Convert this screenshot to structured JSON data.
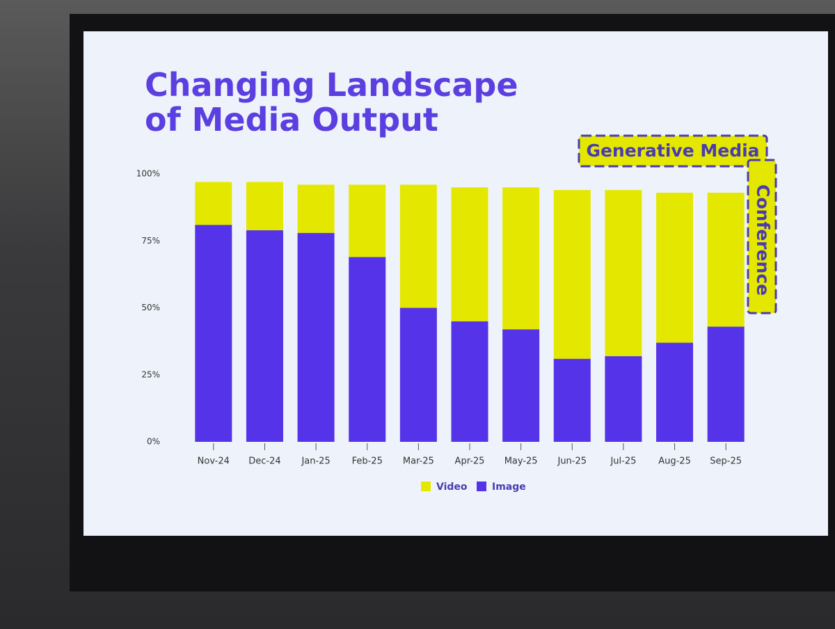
{
  "chart_data": {
    "type": "stacked_bar",
    "title": "Changing Landscape of Media Output",
    "annotations": [
      "Generative Media",
      "Conference"
    ],
    "categories": [
      "Nov-24",
      "Dec-24",
      "Jan-25",
      "Feb-25",
      "Mar-25",
      "Apr-25",
      "May-25",
      "Jun-25",
      "Jul-25",
      "Aug-25",
      "Sep-25"
    ],
    "series": [
      {
        "name": "Video",
        "color": "#e4e800",
        "values": [
          16,
          18,
          18,
          27,
          46,
          50,
          53,
          63,
          62,
          56,
          50
        ]
      },
      {
        "name": "Image",
        "color": "#5533e8",
        "values": [
          81,
          79,
          78,
          69,
          50,
          45,
          42,
          31,
          32,
          37,
          43
        ]
      }
    ],
    "ylim": [
      0,
      100
    ],
    "yticks": [
      {
        "value": 0,
        "label": "0%"
      },
      {
        "value": 25,
        "label": "25%"
      },
      {
        "value": 50,
        "label": "50%"
      },
      {
        "value": 75,
        "label": "75%"
      },
      {
        "value": 100,
        "label": "100%"
      }
    ],
    "grid": false,
    "legend": "bottom"
  }
}
